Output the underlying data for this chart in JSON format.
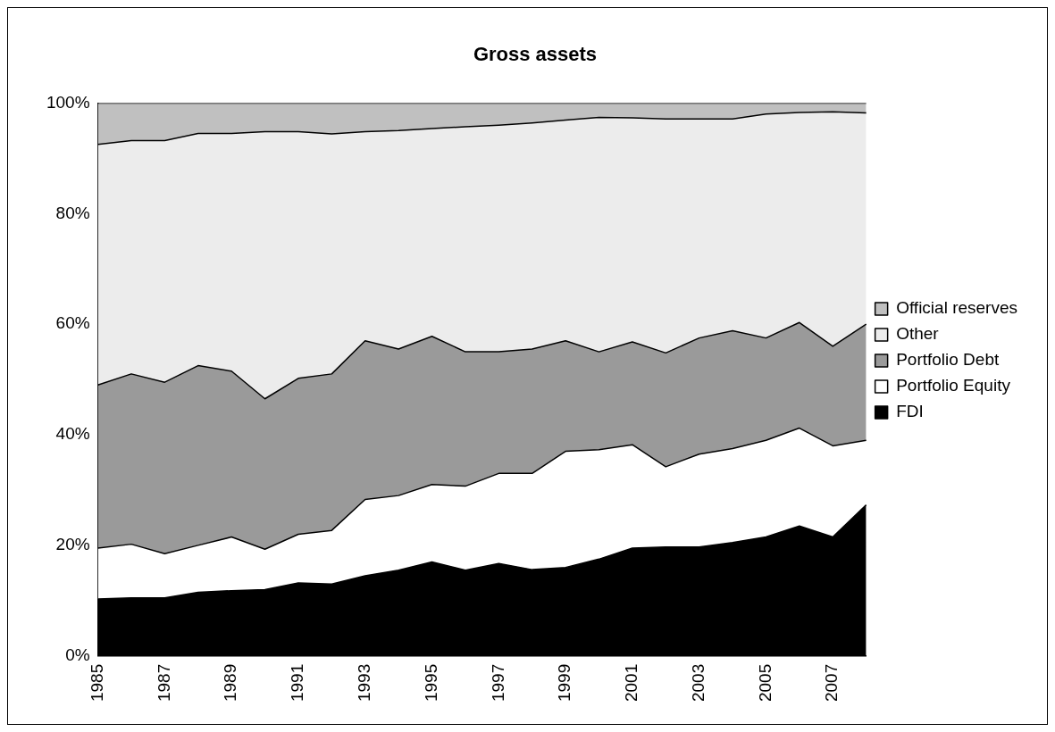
{
  "chart_data": {
    "type": "area",
    "title": "Gross assets",
    "stacked": true,
    "categories": [
      "1985",
      null,
      "1987",
      null,
      "1989",
      null,
      "1991",
      null,
      "1993",
      null,
      "1995",
      null,
      "1997",
      null,
      "1999",
      null,
      "2001",
      null,
      "2003",
      null,
      "2005",
      null,
      "2007",
      null
    ],
    "series": [
      {
        "name": "FDI",
        "color": "#000000",
        "values": [
          10.3,
          10.5,
          10.5,
          11.5,
          11.8,
          12,
          13.2,
          13,
          14.5,
          15.5,
          17,
          15.5,
          16.7,
          15.6,
          16,
          17.5,
          19.5,
          19.7,
          19.7,
          20.5,
          21.5,
          23.5,
          21.5,
          27.3
        ]
      },
      {
        "name": "Portfolio Equity",
        "color": "#ffffff",
        "values": [
          9.2,
          9.7,
          8,
          8.5,
          9.7,
          7.3,
          8.8,
          9.7,
          13.8,
          13.5,
          14,
          15.2,
          16.3,
          17.4,
          21,
          19.8,
          18.7,
          14.5,
          16.8,
          17,
          17.5,
          17.7,
          16.5,
          11.7
        ]
      },
      {
        "name": "Portfolio Debt",
        "color": "#9a9a9a",
        "values": [
          29.5,
          30.8,
          31,
          32.5,
          30,
          27.2,
          28.2,
          28.3,
          28.7,
          26.5,
          26.8,
          24.3,
          22,
          22.5,
          20,
          17.7,
          18.6,
          20.6,
          21,
          21.3,
          18.5,
          19.1,
          18,
          21
        ]
      },
      {
        "name": "Other",
        "color": "#ececec",
        "values": [
          43.5,
          42.2,
          43.7,
          42,
          43,
          48.3,
          44.6,
          43.4,
          37.8,
          39.5,
          37.6,
          40.7,
          41,
          40.9,
          39.9,
          42.4,
          40.5,
          42.3,
          39.6,
          38.3,
          40.5,
          38,
          42.4,
          38.2
        ]
      },
      {
        "name": "Official reserves",
        "color": "#c0c0c0",
        "values": [
          7.5,
          6.8,
          6.8,
          5.5,
          5.5,
          5.2,
          5.2,
          5.6,
          5.2,
          5,
          4.6,
          4.3,
          4,
          3.6,
          3.1,
          2.6,
          2.7,
          2.9,
          2.9,
          2.9,
          2,
          1.7,
          1.6,
          1.8
        ]
      }
    ],
    "ylim": [
      0,
      100
    ],
    "yticks": [
      {
        "value": 0,
        "label": "0%"
      },
      {
        "value": 20,
        "label": "20%"
      },
      {
        "value": 40,
        "label": "40%"
      },
      {
        "value": 60,
        "label": "60%"
      },
      {
        "value": 80,
        "label": "80%"
      },
      {
        "value": 100,
        "label": "100%"
      }
    ],
    "grid": false,
    "legend": "right",
    "marker": "none"
  }
}
